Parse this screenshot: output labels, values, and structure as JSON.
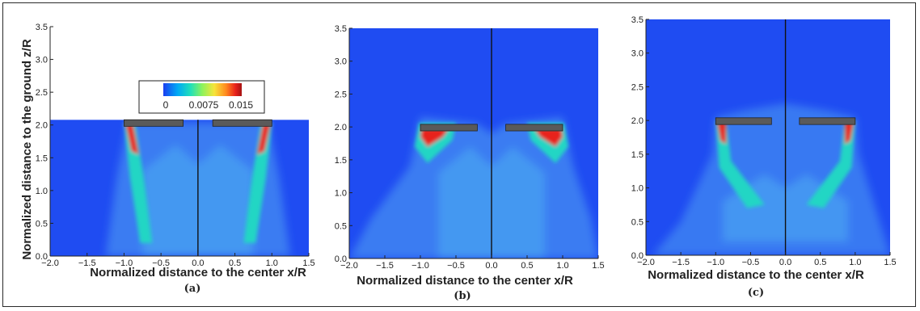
{
  "figure": {
    "ylabel": "Normalized distance to the ground z/R",
    "colorbar_ticks": [
      "0",
      "0.0075",
      "0.015"
    ],
    "colors": {
      "background": "#1f4cf2",
      "colormap": [
        "#1a3ef0",
        "#00a8f5",
        "#22e0b8",
        "#8ff25a",
        "#f6e43a",
        "#ff8a1e",
        "#e8211c",
        "#a51212"
      ],
      "rotor": "#5a5a5a"
    }
  },
  "chart_data": [
    {
      "type": "heatmap",
      "caption": "(a)",
      "xlabel": "Normalized distance to the center x/R",
      "ylabel": "Normalized distance to the ground z/R",
      "x_ticks": [
        "−2.0",
        "−1.5",
        "−1.0",
        "−0.5",
        "0.0",
        "0.5",
        "1.0",
        "1.5"
      ],
      "y_ticks": [
        "0.0",
        "0.5",
        "1.0",
        "1.5",
        "2.0",
        "2.5",
        "3.0",
        "3.5"
      ],
      "xlim": [
        -2.0,
        1.5
      ],
      "ylim": [
        0.0,
        3.5
      ],
      "field_top": 2.08,
      "rotor_height": 2.04,
      "colorbar": {
        "min": 0,
        "max": 0.015,
        "ticks": [
          "0",
          "0.0075",
          "0.015"
        ]
      }
    },
    {
      "type": "heatmap",
      "caption": "(b)",
      "xlabel": "Normalized distance to the center x/R",
      "x_ticks": [
        "−2.0",
        "−1.5",
        "−1.0",
        "−0.5",
        "0.0",
        "0.5",
        "1.0",
        "1.5"
      ],
      "y_ticks": [
        "0.0",
        "0.5",
        "1.0",
        "1.5",
        "2.0",
        "2.5",
        "3.0",
        "3.5"
      ],
      "xlim": [
        -2.0,
        1.5
      ],
      "ylim": [
        0.0,
        3.5
      ],
      "field_top": 3.5,
      "rotor_height": 2.0
    },
    {
      "type": "heatmap",
      "caption": "(c)",
      "xlabel": "Normalized distance to the center x/R",
      "x_ticks": [
        "−2.0",
        "−1.5",
        "−1.0",
        "−0.5",
        "0.0",
        "0.5",
        "1.0",
        "1.5"
      ],
      "y_ticks": [
        "0.0",
        "0.5",
        "1.0",
        "1.5",
        "2.0",
        "2.5",
        "3.0",
        "3.5"
      ],
      "xlim": [
        -2.0,
        1.5
      ],
      "ylim": [
        0.0,
        3.5
      ],
      "field_top": 3.5,
      "rotor_height": 2.0
    }
  ]
}
